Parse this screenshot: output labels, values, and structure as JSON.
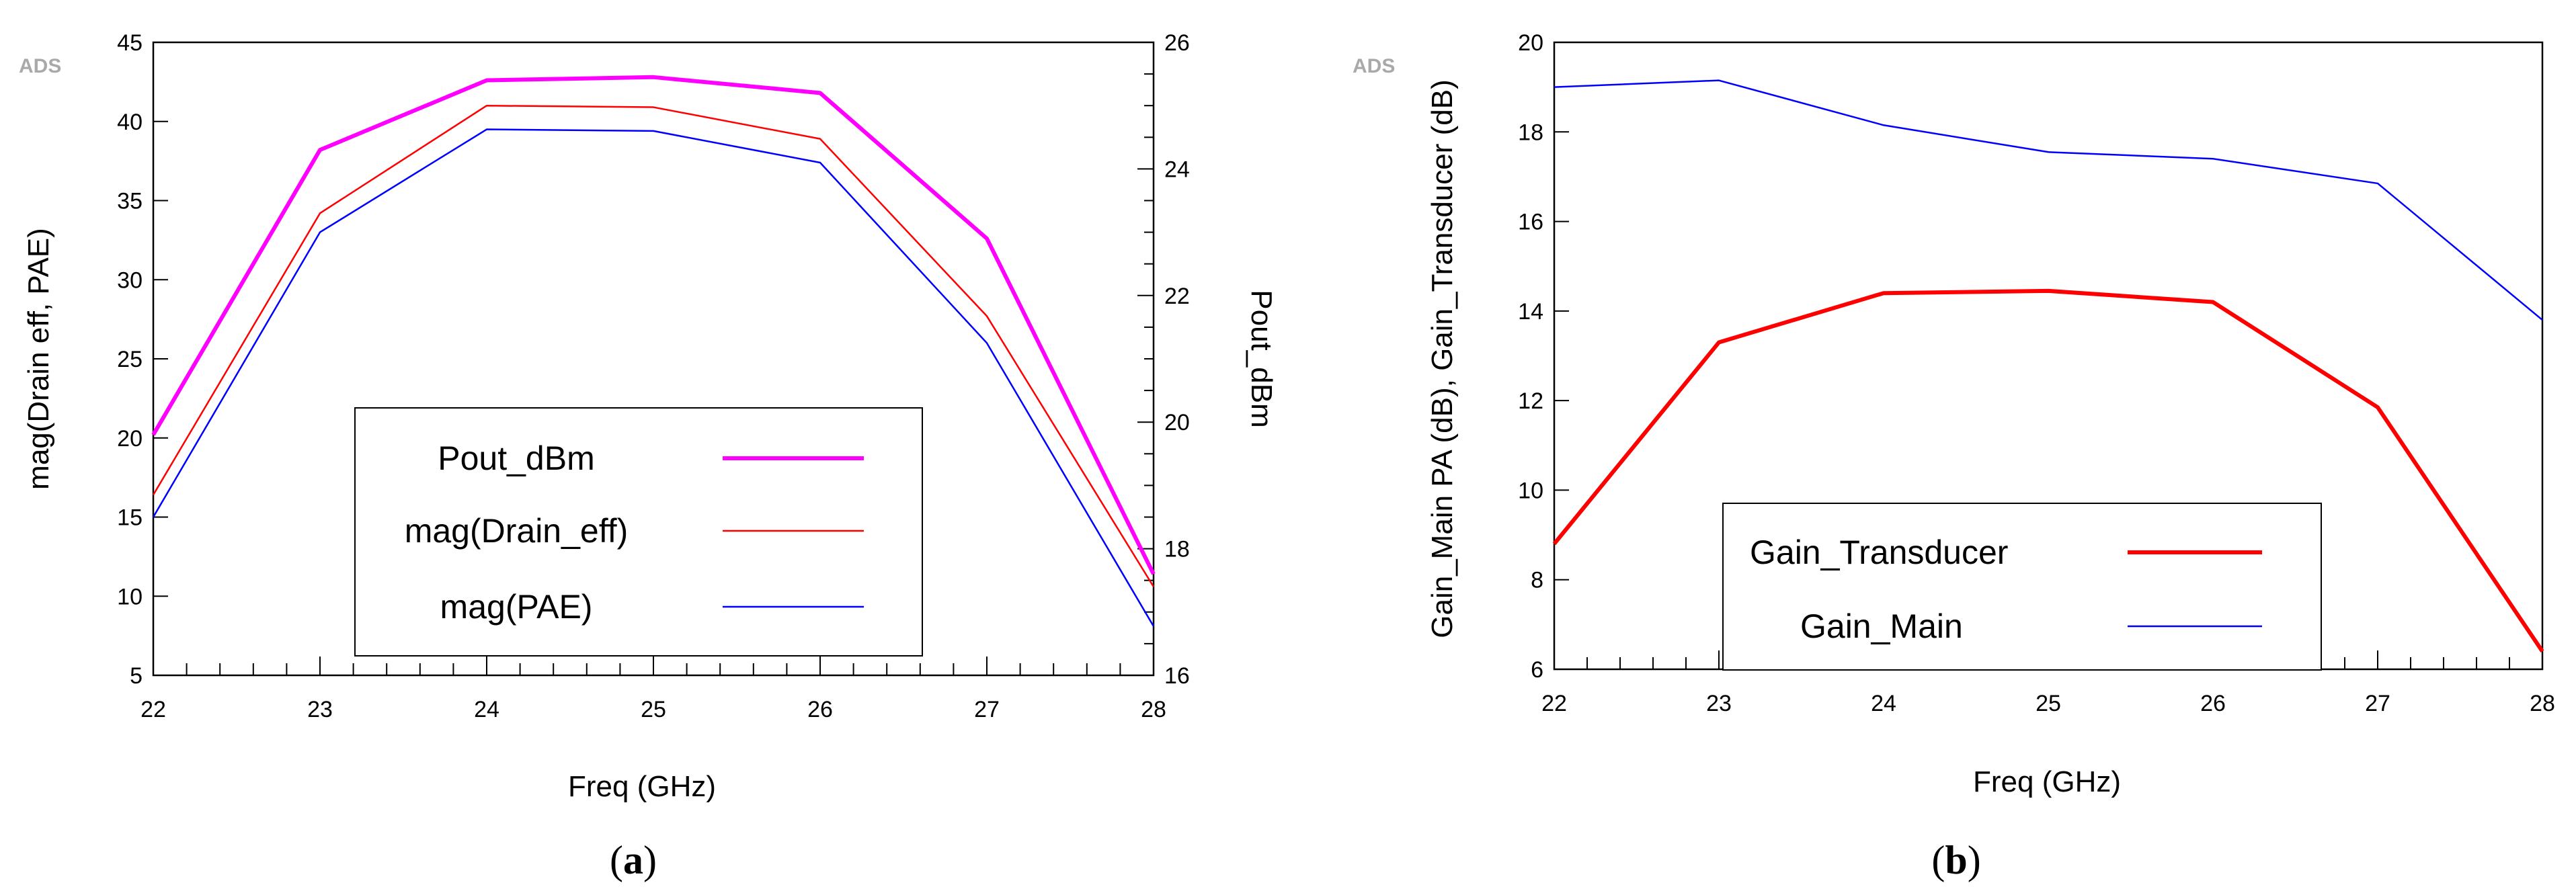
{
  "chart_data": [
    {
      "type": "line",
      "watermark": "ADS",
      "caption_letter": "a",
      "xlabel": "Freq (GHz)",
      "ylabel": "mag(Drain eff, PAE)",
      "y2label": "Pout_dBm",
      "xlim": [
        22,
        28
      ],
      "ylim": [
        5,
        45
      ],
      "y2lim": [
        16,
        26
      ],
      "x_ticks": [
        "22",
        "23",
        "24",
        "25",
        "26",
        "27",
        "28"
      ],
      "y_ticks": [
        "5",
        "10",
        "15",
        "20",
        "25",
        "30",
        "35",
        "40",
        "45"
      ],
      "y2_ticks": [
        "16",
        "18",
        "20",
        "22",
        "24",
        "26"
      ],
      "legend_placement": "bottom-center",
      "x": [
        22,
        23,
        24,
        25,
        26,
        27,
        28
      ],
      "series": [
        {
          "name": "Pout_dBm",
          "axis": "right",
          "color": "#ff00ff",
          "width": "thick",
          "values": [
            19.8,
            24.3,
            25.4,
            25.45,
            25.2,
            22.9,
            17.6
          ]
        },
        {
          "name": "mag(Drain_eff)",
          "axis": "left",
          "color": "#ff0000",
          "width": "thin",
          "values": [
            16.4,
            34.2,
            41.0,
            40.9,
            38.9,
            27.7,
            10.6
          ]
        },
        {
          "name": "mag(PAE)",
          "axis": "left",
          "color": "#0000ff",
          "width": "thin",
          "values": [
            15.0,
            33.0,
            39.5,
            39.4,
            37.4,
            26.0,
            8.1
          ]
        }
      ]
    },
    {
      "type": "line",
      "watermark": "ADS",
      "caption_letter": "b",
      "xlabel": "Freq (GHz)",
      "ylabel": "Gain_Main PA (dB), Gain_Transducer (dB)",
      "xlim": [
        22,
        28
      ],
      "ylim": [
        6,
        20
      ],
      "x_ticks": [
        "22",
        "23",
        "24",
        "25",
        "26",
        "27",
        "28"
      ],
      "y_ticks": [
        "6",
        "8",
        "10",
        "12",
        "14",
        "16",
        "18",
        "20"
      ],
      "legend_placement": "bottom-center",
      "x": [
        22,
        23,
        24,
        25,
        26,
        27,
        28
      ],
      "series": [
        {
          "name": "Gain_Transducer",
          "axis": "left",
          "color": "#ff0000",
          "width": "thick",
          "values": [
            8.8,
            13.3,
            14.4,
            14.45,
            14.2,
            11.85,
            6.4
          ]
        },
        {
          "name": "Gain_Main",
          "axis": "left",
          "color": "#0000ff",
          "width": "thin",
          "values": [
            19.0,
            19.15,
            18.15,
            17.55,
            17.4,
            16.85,
            13.8
          ]
        }
      ]
    }
  ]
}
